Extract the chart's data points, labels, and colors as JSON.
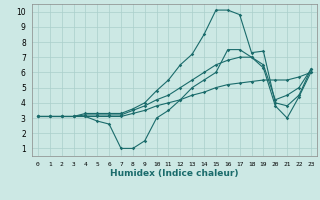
{
  "xlabel": "Humidex (Indice chaleur)",
  "bg_color": "#cce8e4",
  "grid_color": "#aacfcb",
  "line_color": "#1a6b6b",
  "xlim": [
    -0.5,
    23.5
  ],
  "ylim": [
    0.5,
    10.5
  ],
  "xticks": [
    0,
    1,
    2,
    3,
    4,
    5,
    6,
    7,
    8,
    9,
    10,
    11,
    12,
    13,
    14,
    15,
    16,
    17,
    18,
    19,
    20,
    21,
    22,
    23
  ],
  "yticks": [
    1,
    2,
    3,
    4,
    5,
    6,
    7,
    8,
    9,
    10
  ],
  "lines": [
    [
      3.1,
      3.1,
      3.1,
      3.1,
      3.1,
      2.8,
      2.6,
      1.0,
      1.0,
      1.5,
      3.0,
      3.5,
      4.2,
      5.0,
      5.5,
      6.0,
      7.5,
      7.5,
      7.0,
      6.3,
      3.8,
      3.0,
      4.4,
      6.0
    ],
    [
      3.1,
      3.1,
      3.1,
      3.1,
      3.1,
      3.1,
      3.1,
      3.1,
      3.3,
      3.5,
      3.8,
      4.0,
      4.2,
      4.5,
      4.7,
      5.0,
      5.2,
      5.3,
      5.4,
      5.5,
      5.5,
      5.5,
      5.7,
      6.0
    ],
    [
      3.1,
      3.1,
      3.1,
      3.1,
      3.2,
      3.2,
      3.2,
      3.2,
      3.5,
      3.8,
      4.2,
      4.5,
      5.0,
      5.5,
      6.0,
      6.5,
      6.8,
      7.0,
      7.0,
      6.5,
      4.2,
      4.5,
      5.0,
      6.2
    ],
    [
      3.1,
      3.1,
      3.1,
      3.1,
      3.3,
      3.3,
      3.3,
      3.3,
      3.6,
      4.0,
      4.8,
      5.5,
      6.5,
      7.2,
      8.5,
      10.1,
      10.1,
      9.8,
      7.3,
      7.4,
      4.0,
      3.8,
      4.5,
      6.2
    ]
  ]
}
